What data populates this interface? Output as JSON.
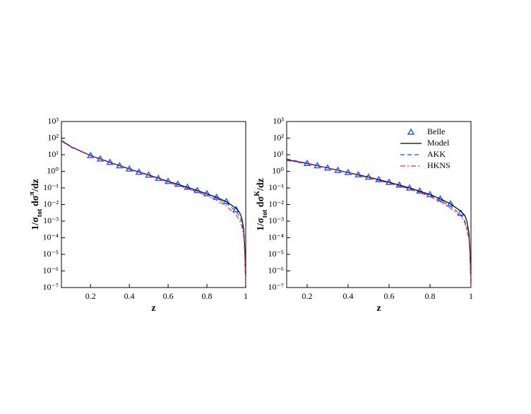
{
  "chart_data": [
    {
      "type": "line",
      "log_y": true,
      "legend": false,
      "xlabel": "z",
      "ylabel": [
        "1/σ",
        "tot",
        " dσ",
        "π",
        "/dz"
      ],
      "xlim": [
        0.05,
        1
      ],
      "xticks": [
        0.2,
        0.4,
        0.6,
        0.8,
        1
      ],
      "ylim": [
        1e-07,
        1000
      ],
      "yticks": [
        {
          "value": 1e-07,
          "label": "10⁻⁷"
        },
        {
          "value": 1e-06,
          "label": "10⁻⁶"
        },
        {
          "value": 1e-05,
          "label": "10⁻⁵"
        },
        {
          "value": 0.0001,
          "label": "10⁻⁴"
        },
        {
          "value": 0.001,
          "label": "10⁻³"
        },
        {
          "value": 0.01,
          "label": "10⁻²"
        },
        {
          "value": 0.1,
          "label": "10⁻¹"
        },
        {
          "value": 1,
          "label": "10⁰"
        },
        {
          "value": 10,
          "label": "10¹"
        },
        {
          "value": 100,
          "label": "10²"
        },
        {
          "value": 1000,
          "label": "10³"
        }
      ],
      "series": [
        {
          "name": "Belle",
          "marker": "triangle",
          "color": "#1f5fff",
          "x": [
            0.2,
            0.25,
            0.3,
            0.35,
            0.4,
            0.45,
            0.5,
            0.55,
            0.6,
            0.65,
            0.7,
            0.75,
            0.8,
            0.85,
            0.9,
            0.95
          ],
          "values": [
            9,
            5.6,
            3.5,
            2.2,
            1.4,
            0.9,
            0.6,
            0.38,
            0.25,
            0.17,
            0.11,
            0.07,
            0.045,
            0.027,
            0.015,
            0.005
          ]
        },
        {
          "name": "Model",
          "dash": "solid",
          "color": "#000000",
          "x": [
            0.05,
            0.1,
            0.2,
            0.3,
            0.4,
            0.5,
            0.6,
            0.7,
            0.8,
            0.85,
            0.9,
            0.95,
            0.97,
            0.98,
            0.99,
            0.995,
            1.0
          ],
          "values": [
            70,
            30,
            9,
            3.5,
            1.4,
            0.6,
            0.25,
            0.11,
            0.045,
            0.027,
            0.015,
            0.006,
            0.003,
            0.0015,
            0.0003,
            3e-05,
            1e-07
          ]
        },
        {
          "name": "AKK",
          "dash": "dashed",
          "color": "#1f3fff",
          "x": [
            0.05,
            0.1,
            0.2,
            0.3,
            0.4,
            0.5,
            0.6,
            0.7,
            0.8,
            0.85,
            0.9,
            0.95,
            0.97,
            0.98,
            0.99,
            0.995,
            1.0
          ],
          "values": [
            75,
            31,
            9,
            3.4,
            1.35,
            0.58,
            0.24,
            0.1,
            0.042,
            0.024,
            0.012,
            0.004,
            0.0018,
            0.0008,
            0.0002,
            2e-05,
            1e-07
          ]
        },
        {
          "name": "HKNS",
          "dash": "dashdot",
          "color": "#e83030",
          "x": [
            0.05,
            0.1,
            0.2,
            0.3,
            0.4,
            0.5,
            0.6,
            0.7,
            0.8,
            0.85,
            0.9,
            0.95,
            0.97,
            0.98,
            0.99,
            0.995,
            1.0
          ],
          "values": [
            65,
            28,
            8.5,
            3.3,
            1.3,
            0.55,
            0.22,
            0.09,
            0.035,
            0.018,
            0.008,
            0.0025,
            0.001,
            0.0005,
            0.0001,
            1e-05,
            1e-07
          ]
        }
      ]
    },
    {
      "type": "line",
      "log_y": true,
      "legend": "upper right",
      "xlabel": "z",
      "ylabel": [
        "1/σ",
        "tot",
        " dσ",
        "K",
        "/dz"
      ],
      "xlim": [
        0.1,
        1
      ],
      "xticks": [
        0.2,
        0.4,
        0.6,
        0.8,
        1
      ],
      "ylim": [
        1e-07,
        1000
      ],
      "yticks": [
        {
          "value": 1e-07,
          "label": "10⁻⁷"
        },
        {
          "value": 1e-06,
          "label": "10⁻⁶"
        },
        {
          "value": 1e-05,
          "label": "10⁻⁵"
        },
        {
          "value": 0.0001,
          "label": "10⁻⁴"
        },
        {
          "value": 0.001,
          "label": "10⁻³"
        },
        {
          "value": 0.01,
          "label": "10⁻²"
        },
        {
          "value": 0.1,
          "label": "10⁻¹"
        },
        {
          "value": 1,
          "label": "10⁰"
        },
        {
          "value": 10,
          "label": "10¹"
        },
        {
          "value": 100,
          "label": "10²"
        },
        {
          "value": 1000,
          "label": "10³"
        }
      ],
      "series": [
        {
          "name": "Belle",
          "marker": "triangle",
          "color": "#1f5fff",
          "x": [
            0.2,
            0.25,
            0.3,
            0.35,
            0.4,
            0.45,
            0.5,
            0.55,
            0.6,
            0.65,
            0.7,
            0.75,
            0.8,
            0.85,
            0.9,
            0.95
          ],
          "values": [
            3,
            2.2,
            1.6,
            1.15,
            0.85,
            0.62,
            0.45,
            0.32,
            0.22,
            0.15,
            0.1,
            0.065,
            0.04,
            0.022,
            0.011,
            0.003
          ]
        },
        {
          "name": "Model",
          "dash": "solid",
          "color": "#000000",
          "x": [
            0.1,
            0.2,
            0.3,
            0.4,
            0.5,
            0.6,
            0.7,
            0.8,
            0.85,
            0.9,
            0.95,
            0.97,
            0.98,
            0.99,
            0.995,
            1.0
          ],
          "values": [
            5,
            3,
            1.6,
            0.85,
            0.45,
            0.22,
            0.1,
            0.04,
            0.022,
            0.011,
            0.004,
            0.0022,
            0.001,
            0.0002,
            2e-05,
            1e-07
          ]
        },
        {
          "name": "AKK",
          "dash": "dashed",
          "color": "#1f3fff",
          "x": [
            0.1,
            0.2,
            0.3,
            0.4,
            0.5,
            0.6,
            0.7,
            0.8,
            0.85,
            0.9,
            0.95,
            0.97,
            0.98,
            0.99,
            0.995,
            1.0
          ],
          "values": [
            5.5,
            3.1,
            1.6,
            0.82,
            0.42,
            0.2,
            0.09,
            0.035,
            0.018,
            0.008,
            0.0025,
            0.001,
            0.0004,
            0.0001,
            1e-05,
            1e-07
          ]
        },
        {
          "name": "HKNS",
          "dash": "dashdot",
          "color": "#e83030",
          "x": [
            0.1,
            0.2,
            0.3,
            0.4,
            0.5,
            0.6,
            0.7,
            0.8,
            0.85,
            0.9,
            0.95,
            0.97,
            0.98,
            0.99,
            0.995,
            1.0
          ],
          "values": [
            4.5,
            2.8,
            1.5,
            0.8,
            0.4,
            0.19,
            0.085,
            0.03,
            0.015,
            0.006,
            0.002,
            0.0008,
            0.0003,
            8e-05,
            1e-05,
            1e-07
          ]
        }
      ]
    }
  ]
}
